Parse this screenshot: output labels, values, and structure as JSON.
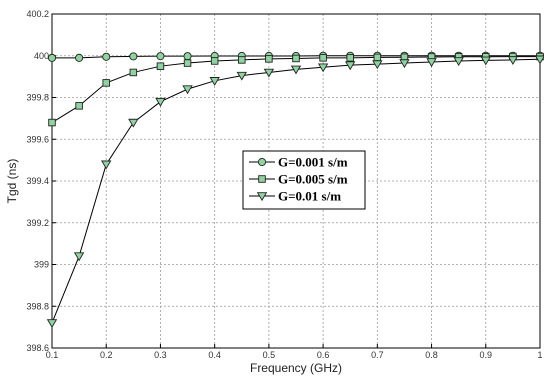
{
  "chart_data": {
    "type": "line",
    "title": "",
    "xlabel": "Frequency  (GHz)",
    "ylabel": "Tgd  (ns)",
    "xlim": [
      0.1,
      1
    ],
    "ylim": [
      398.6,
      400.2
    ],
    "xticks": [
      0.1,
      0.2,
      0.3,
      0.4,
      0.5,
      0.6,
      0.7,
      0.8,
      0.9,
      1
    ],
    "xtick_labels": [
      "0.1",
      "0.2",
      "0.3",
      "0.4",
      "0.5",
      "0.6",
      "0.7",
      "0.8",
      "0.9",
      "1"
    ],
    "yticks": [
      398.6,
      398.8,
      399,
      399.2,
      399.4,
      399.6,
      399.8,
      400,
      400.2
    ],
    "ytick_labels": [
      "398.6",
      "398.8",
      "399",
      "399.2",
      "399.4",
      "399.6",
      "399.8",
      "400",
      "400.2"
    ],
    "grid": true,
    "legend_position": "center",
    "marker_color": "#8fd4a0",
    "line_color": "#000000",
    "x": [
      0.1,
      0.15,
      0.2,
      0.25,
      0.3,
      0.35,
      0.4,
      0.45,
      0.5,
      0.55,
      0.6,
      0.65,
      0.7,
      0.75,
      0.8,
      0.85,
      0.9,
      0.95,
      1.0
    ],
    "series": [
      {
        "name": "G=0.001 s/m",
        "marker": "circle",
        "values": [
          399.99,
          399.99,
          399.995,
          399.997,
          399.998,
          399.998,
          399.999,
          399.999,
          399.999,
          399.999,
          400.0,
          400.0,
          400.0,
          400.0,
          400.0,
          400.0,
          400.0,
          400.0,
          400.0
        ]
      },
      {
        "name": "G=0.005 s/m",
        "marker": "square",
        "values": [
          399.68,
          399.76,
          399.87,
          399.92,
          399.95,
          399.965,
          399.975,
          399.98,
          399.985,
          399.987,
          399.99,
          399.99,
          399.992,
          399.993,
          399.994,
          399.995,
          399.995,
          399.996,
          399.996
        ]
      },
      {
        "name": "G=0.01  s/m",
        "marker": "triangle-down",
        "values": [
          398.72,
          399.04,
          399.48,
          399.68,
          399.78,
          399.84,
          399.88,
          399.905,
          399.92,
          399.935,
          399.945,
          399.955,
          399.96,
          399.965,
          399.97,
          399.975,
          399.978,
          399.98,
          399.983
        ]
      }
    ]
  }
}
